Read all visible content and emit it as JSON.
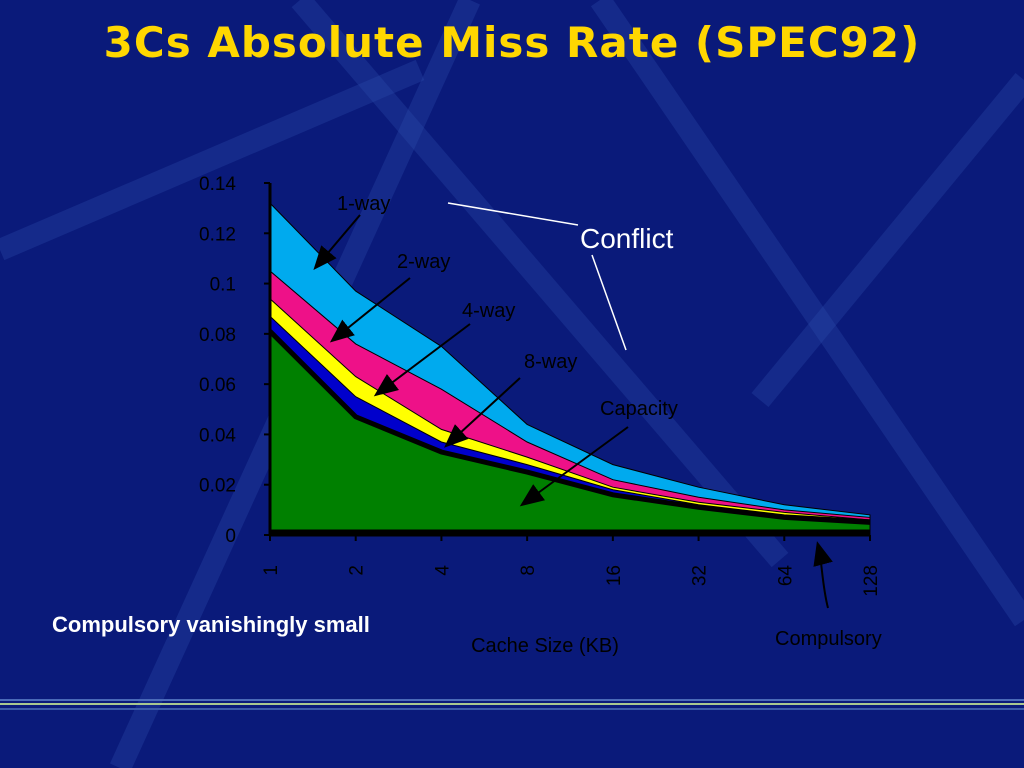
{
  "slide": {
    "title": "3Cs Absolute Miss Rate (SPEC92)",
    "note": "Compulsory vanishingly small"
  },
  "colors": {
    "background": "#0a1a7a",
    "title": "#ffd700",
    "one_way": "#00aaee",
    "two_way": "#ee1188",
    "four_way": "#ffff00",
    "eight_way": "#0000cc",
    "capacity": "#008000",
    "compulsory": "#000000"
  },
  "chart_data": {
    "type": "area",
    "stacked": true,
    "x": [
      "1",
      "2",
      "4",
      "8",
      "16",
      "32",
      "64",
      "128"
    ],
    "xlabel": "Cache Size (KB)",
    "ylabel": "",
    "ylim": [
      0,
      0.14
    ],
    "yticks": [
      "0",
      "0.02",
      "0.04",
      "0.06",
      "0.08",
      "0.1",
      "0.12",
      "0.14"
    ],
    "series": [
      {
        "name": "Compulsory",
        "cumulative": [
          0.002,
          0.002,
          0.002,
          0.002,
          0.002,
          0.002,
          0.002,
          0.002
        ]
      },
      {
        "name": "Capacity",
        "cumulative": [
          0.081,
          0.047,
          0.033,
          0.025,
          0.016,
          0.011,
          0.007,
          0.005
        ]
      },
      {
        "name": "8-way",
        "cumulative": [
          0.087,
          0.055,
          0.037,
          0.028,
          0.018,
          0.012,
          0.008,
          0.006
        ]
      },
      {
        "name": "4-way",
        "cumulative": [
          0.094,
          0.063,
          0.042,
          0.031,
          0.019,
          0.013,
          0.009,
          0.006
        ]
      },
      {
        "name": "2-way",
        "cumulative": [
          0.105,
          0.076,
          0.058,
          0.037,
          0.022,
          0.015,
          0.01,
          0.007
        ]
      },
      {
        "name": "1-way",
        "cumulative": [
          0.132,
          0.097,
          0.075,
          0.044,
          0.028,
          0.019,
          0.012,
          0.008
        ]
      }
    ],
    "annotations": {
      "conflict": "Conflict",
      "one_way": "1-way",
      "two_way": "2-way",
      "four_way": "4-way",
      "eight_way": "8-way",
      "capacity": "Capacity",
      "compulsory": "Compulsory"
    }
  }
}
